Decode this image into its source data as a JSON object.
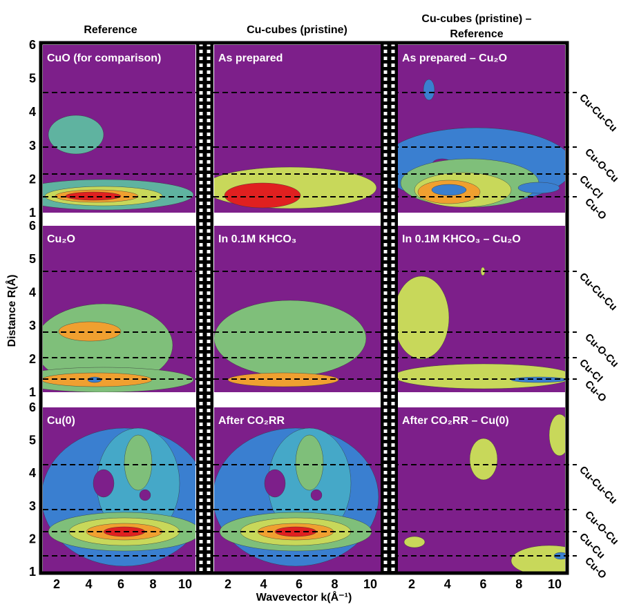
{
  "column_headers": [
    "Reference",
    "Cu-cubes (pristine)",
    "Cu-cubes (pristine) –",
    "Reference"
  ],
  "panels": [
    [
      "CuO (for comparison)",
      "As prepared",
      "As prepared – Cu₂O"
    ],
    [
      "Cu₂O",
      "In 0.1M KHCO₃",
      "In 0.1M KHCO₃ – Cu₂O"
    ],
    [
      "Cu(0)",
      "After CO₂RR",
      "After CO₂RR – Cu(0)"
    ]
  ],
  "y_axis": {
    "label": "Distance R(Å)",
    "ticks": [
      "6",
      "5",
      "4",
      "3",
      "2",
      "1"
    ]
  },
  "x_axis": {
    "label": "Wavevector k(Å⁻¹)",
    "ticks": [
      "2",
      "4",
      "6",
      "8",
      "10"
    ]
  },
  "shell_labels": [
    [
      "Cu-Cu-Cu",
      "Cu-O-Cu",
      "Cu-Cl",
      "Cu-O"
    ],
    [
      "Cu-Cu-Cu",
      "Cu-O-Cu",
      "Cu-Cl",
      "Cu-O"
    ],
    [
      "Cu-Cu-Cu",
      "Cu-O-Cu",
      "Cu-Cu",
      "Cu-O"
    ]
  ]
}
